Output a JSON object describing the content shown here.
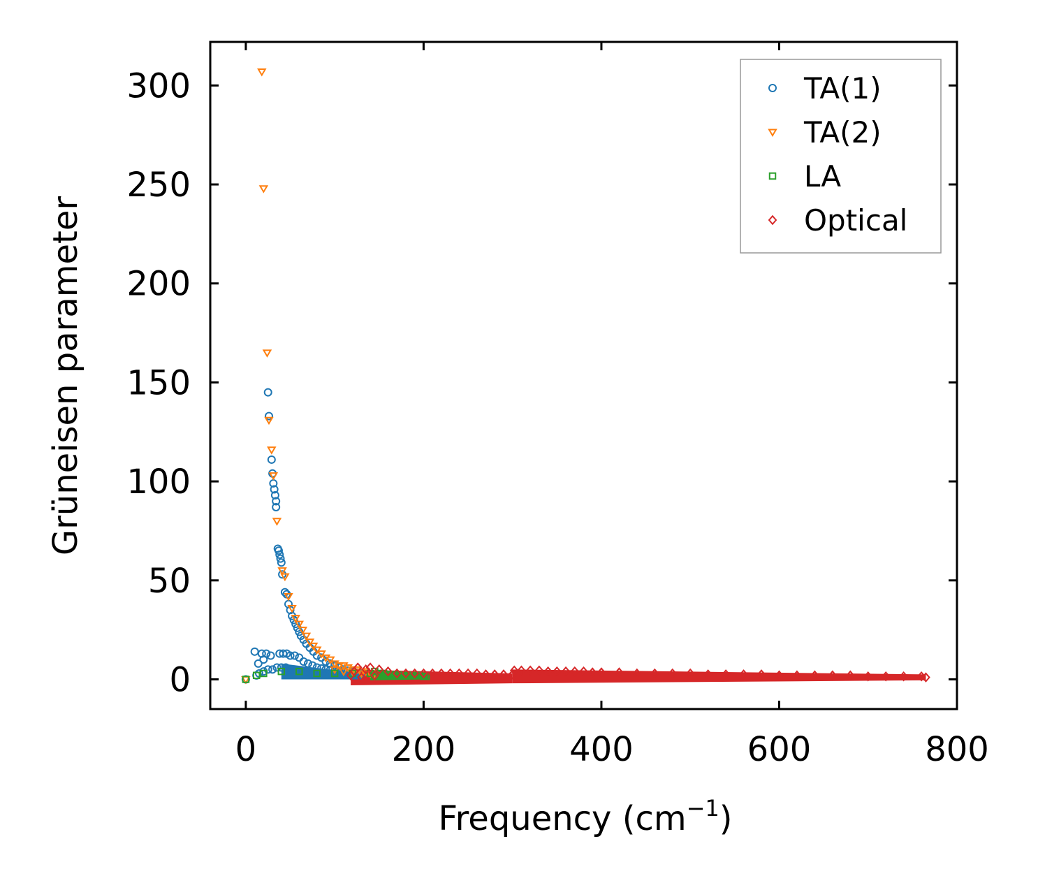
{
  "chart_data": {
    "type": "scatter",
    "xlabel": "Frequency (cm",
    "xlabel_sup": "−1",
    "xlabel_suffix": ")",
    "ylabel": "Grüneisen parameter",
    "xlim": [
      -40,
      800
    ],
    "ylim": [
      -15,
      322
    ],
    "xticks": [
      0,
      200,
      400,
      600,
      800
    ],
    "yticks": [
      0,
      50,
      100,
      150,
      200,
      250,
      300
    ],
    "legend_position": "top-right",
    "grid": false,
    "series": [
      {
        "name": "TA(1)",
        "marker": "circle",
        "color": "#1f77b4",
        "points": [
          [
            0,
            0
          ],
          [
            10,
            14
          ],
          [
            14,
            8
          ],
          [
            18,
            13
          ],
          [
            20,
            10
          ],
          [
            23,
            13
          ],
          [
            25,
            145
          ],
          [
            26,
            133
          ],
          [
            28,
            12
          ],
          [
            29,
            111
          ],
          [
            30,
            104
          ],
          [
            31,
            99
          ],
          [
            32,
            96
          ],
          [
            33,
            93
          ],
          [
            34,
            90
          ],
          [
            34,
            87
          ],
          [
            36,
            66
          ],
          [
            37,
            65
          ],
          [
            38,
            63
          ],
          [
            39,
            61
          ],
          [
            40,
            59
          ],
          [
            41,
            53
          ],
          [
            44,
            44
          ],
          [
            46,
            43
          ],
          [
            48,
            38
          ],
          [
            50,
            35
          ],
          [
            52,
            32
          ],
          [
            54,
            30
          ],
          [
            56,
            28
          ],
          [
            58,
            26
          ],
          [
            60,
            24
          ],
          [
            62,
            22
          ],
          [
            65,
            20
          ],
          [
            68,
            18
          ],
          [
            72,
            16
          ],
          [
            76,
            14
          ],
          [
            80,
            12
          ],
          [
            85,
            11
          ],
          [
            90,
            9
          ],
          [
            95,
            8
          ],
          [
            100,
            7
          ],
          [
            105,
            6
          ],
          [
            110,
            5
          ],
          [
            115,
            4.5
          ],
          [
            120,
            4
          ],
          [
            125,
            3.5
          ],
          [
            130,
            3
          ],
          [
            38,
            13
          ],
          [
            42,
            13
          ],
          [
            46,
            13
          ],
          [
            50,
            12
          ],
          [
            55,
            12
          ],
          [
            60,
            11
          ],
          [
            65,
            9
          ],
          [
            70,
            8
          ],
          [
            75,
            7
          ],
          [
            80,
            6
          ],
          [
            85,
            5.5
          ],
          [
            90,
            5
          ],
          [
            95,
            4.8
          ],
          [
            100,
            4.5
          ],
          [
            105,
            4.2
          ],
          [
            110,
            4
          ],
          [
            12,
            2
          ],
          [
            15,
            3
          ],
          [
            20,
            4
          ],
          [
            25,
            5
          ],
          [
            30,
            5
          ],
          [
            35,
            6
          ],
          [
            40,
            6
          ],
          [
            45,
            6
          ],
          [
            50,
            5
          ],
          [
            55,
            5
          ],
          [
            60,
            4
          ],
          [
            65,
            4
          ],
          [
            70,
            3.5
          ],
          [
            75,
            3
          ],
          [
            80,
            3
          ],
          [
            85,
            3
          ],
          [
            90,
            2.5
          ],
          [
            100,
            2.5
          ],
          [
            110,
            2.5
          ],
          [
            120,
            2.5
          ]
        ]
      },
      {
        "name": "TA(2)",
        "marker": "triangle-down",
        "color": "#ff7f0e",
        "points": [
          [
            0,
            0
          ],
          [
            18,
            307
          ],
          [
            20,
            248
          ],
          [
            24,
            165
          ],
          [
            26,
            131
          ],
          [
            29,
            116
          ],
          [
            31,
            103
          ],
          [
            35,
            80
          ],
          [
            41,
            55
          ],
          [
            44,
            52
          ],
          [
            48,
            42
          ],
          [
            52,
            36
          ],
          [
            56,
            31
          ],
          [
            60,
            28
          ],
          [
            64,
            25
          ],
          [
            68,
            22
          ],
          [
            72,
            19
          ],
          [
            76,
            17
          ],
          [
            80,
            15
          ],
          [
            85,
            13
          ],
          [
            90,
            11
          ],
          [
            95,
            10
          ],
          [
            100,
            8
          ],
          [
            105,
            7
          ],
          [
            110,
            7
          ],
          [
            115,
            6
          ],
          [
            120,
            5
          ],
          [
            125,
            5
          ],
          [
            130,
            4
          ],
          [
            135,
            4
          ],
          [
            140,
            3
          ],
          [
            145,
            3
          ],
          [
            100,
            5
          ],
          [
            110,
            4
          ],
          [
            120,
            4
          ],
          [
            130,
            3
          ]
        ]
      },
      {
        "name": "LA",
        "marker": "square",
        "color": "#2ca02c",
        "points": [
          [
            0,
            0
          ],
          [
            12,
            2
          ],
          [
            20,
            3
          ],
          [
            40,
            4
          ],
          [
            60,
            4
          ],
          [
            80,
            3
          ],
          [
            100,
            3
          ],
          [
            120,
            3
          ],
          [
            140,
            3
          ],
          [
            145,
            4
          ],
          [
            150,
            3
          ],
          [
            155,
            3
          ],
          [
            160,
            2.5
          ],
          [
            165,
            2.5
          ],
          [
            170,
            2.5
          ],
          [
            175,
            2
          ],
          [
            180,
            2
          ],
          [
            185,
            2
          ],
          [
            190,
            2
          ],
          [
            195,
            2
          ],
          [
            200,
            1.5
          ],
          [
            203,
            1.5
          ]
        ]
      },
      {
        "name": "Optical",
        "marker": "diamond",
        "color": "#d62728",
        "points": [
          [
            118,
            2
          ],
          [
            122,
            4
          ],
          [
            126,
            6
          ],
          [
            130,
            1
          ],
          [
            135,
            5
          ],
          [
            140,
            6
          ],
          [
            145,
            2
          ],
          [
            150,
            5
          ],
          [
            160,
            4
          ],
          [
            170,
            3
          ],
          [
            180,
            3
          ],
          [
            190,
            3
          ],
          [
            200,
            3
          ],
          [
            210,
            3
          ],
          [
            220,
            3
          ],
          [
            230,
            3
          ],
          [
            240,
            3
          ],
          [
            250,
            3
          ],
          [
            260,
            3
          ],
          [
            270,
            2.5
          ],
          [
            280,
            2.5
          ],
          [
            290,
            2.5
          ],
          [
            300,
            2.5
          ],
          [
            302,
            4.5
          ],
          [
            310,
            4.5
          ],
          [
            320,
            4.5
          ],
          [
            330,
            4.5
          ],
          [
            340,
            4
          ],
          [
            350,
            4
          ],
          [
            360,
            4
          ],
          [
            370,
            4
          ],
          [
            380,
            4
          ],
          [
            390,
            3.5
          ],
          [
            400,
            3.5
          ],
          [
            420,
            3.5
          ],
          [
            440,
            3
          ],
          [
            460,
            3
          ],
          [
            480,
            3
          ],
          [
            500,
            3
          ],
          [
            520,
            2.5
          ],
          [
            540,
            2.5
          ],
          [
            560,
            2.5
          ],
          [
            580,
            2.5
          ],
          [
            600,
            2
          ],
          [
            620,
            2
          ],
          [
            640,
            2
          ],
          [
            660,
            2
          ],
          [
            680,
            2
          ],
          [
            700,
            1.5
          ],
          [
            720,
            1.5
          ],
          [
            740,
            1.5
          ],
          [
            760,
            1.5
          ],
          [
            765,
            1
          ]
        ]
      }
    ]
  }
}
